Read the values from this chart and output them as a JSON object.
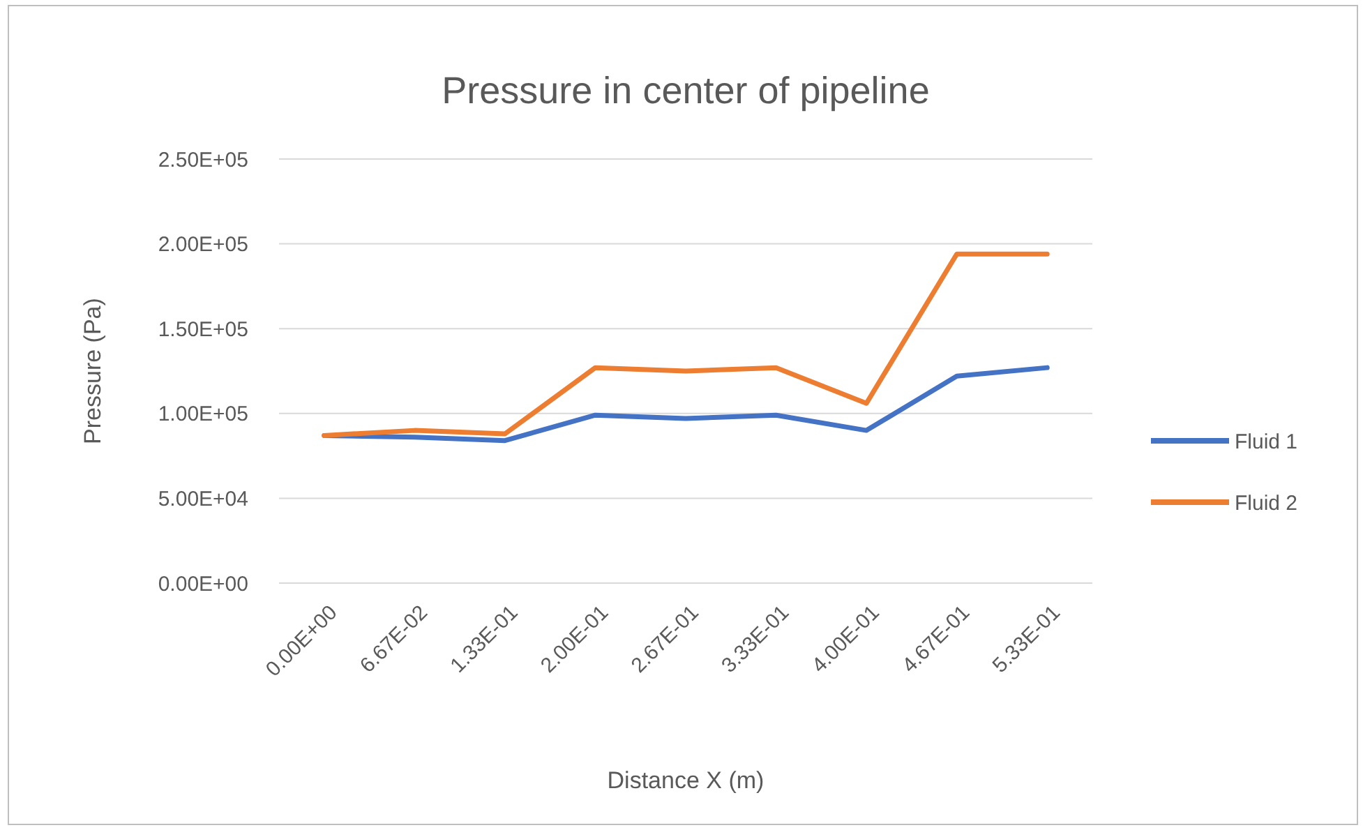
{
  "chart_data": {
    "type": "line",
    "title": "Pressure in center of pipeline",
    "xlabel": "Distance X (m)",
    "ylabel": "Pressure  (Pa)",
    "categories": [
      "0.00E+00",
      "6.67E-02",
      "1.33E-01",
      "2.00E-01",
      "2.67E-01",
      "3.33E-01",
      "4.00E-01",
      "4.67E-01",
      "5.33E-01"
    ],
    "series": [
      {
        "name": "Fluid 1",
        "color": "#4472c4",
        "values": [
          87000,
          86000,
          84000,
          99000,
          97000,
          99000,
          90000,
          122000,
          127000
        ]
      },
      {
        "name": "Fluid 2",
        "color": "#ed7d31",
        "values": [
          87000,
          90000,
          88000,
          127000,
          125000,
          127000,
          106000,
          194000,
          194000
        ]
      }
    ],
    "ylim": [
      0,
      250000
    ],
    "yticks": [
      {
        "value": 0,
        "label": "0.00E+00"
      },
      {
        "value": 50000,
        "label": "5.00E+04"
      },
      {
        "value": 100000,
        "label": "1.00E+05"
      },
      {
        "value": 150000,
        "label": "1.50E+05"
      },
      {
        "value": 200000,
        "label": "2.00E+05"
      },
      {
        "value": 250000,
        "label": "2.50E+05"
      }
    ],
    "grid": "y",
    "legend": "right",
    "marker": "none",
    "line_style": "solid"
  }
}
